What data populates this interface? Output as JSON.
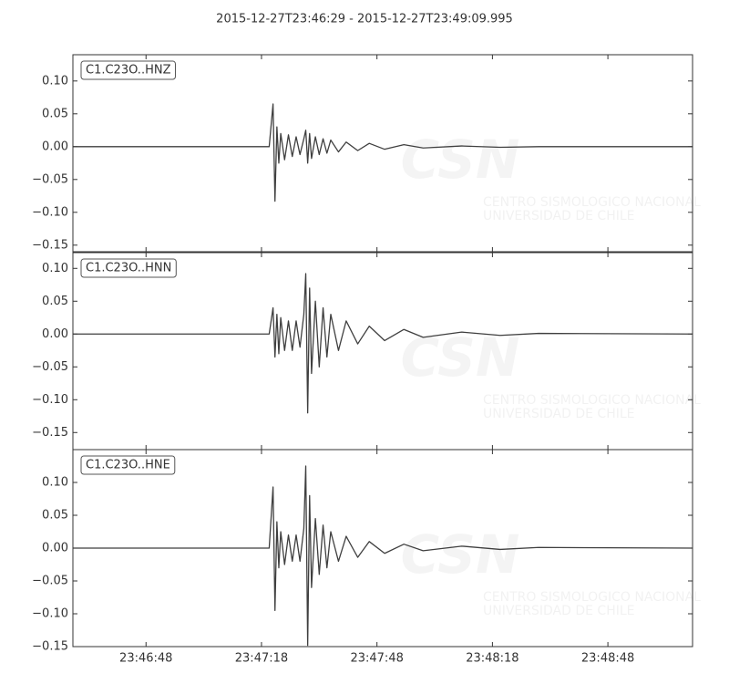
{
  "title": "2015-12-27T23:46:29  -  2015-12-27T23:49:09.995",
  "watermark": [
    "CSN",
    "CENTRO SISMOLOGICO NACIONAL",
    "UNIVERSIDAD DE CHILE"
  ],
  "chart_data": [
    {
      "type": "line",
      "label": "C1.C23O..HNZ",
      "color": "#3f3f3f",
      "xlim": [
        "23:46:29",
        "23:49:09.995"
      ],
      "ylim": [
        -0.16,
        0.14
      ],
      "yticks": [
        {
          "value": 0.1,
          "label": "0.10"
        },
        {
          "value": 0.05,
          "label": "0.05"
        },
        {
          "value": 0,
          "label": "0.00"
        },
        {
          "value": -0.05,
          "label": "−0.05"
        },
        {
          "value": -0.1,
          "label": "−0.10"
        },
        {
          "value": -0.15,
          "label": "−0.15"
        }
      ],
      "x": [
        "23:46:29",
        "23:47:20",
        "23:47:21",
        "23:47:21.5",
        "23:47:22",
        "23:47:22.5",
        "23:47:23",
        "23:47:24",
        "23:47:25",
        "23:47:26",
        "23:47:27",
        "23:47:28",
        "23:47:29",
        "23:47:29.5",
        "23:47:30",
        "23:47:30.5",
        "23:47:31",
        "23:47:32",
        "23:47:33",
        "23:47:34",
        "23:47:35",
        "23:47:36",
        "23:47:38",
        "23:47:40",
        "23:47:43",
        "23:47:46",
        "23:47:50",
        "23:47:55",
        "23:48:00",
        "23:48:10",
        "23:48:20",
        "23:48:30",
        "23:49:09.995"
      ],
      "values": [
        0,
        0,
        0.065,
        -0.083,
        0.03,
        -0.025,
        0.02,
        -0.02,
        0.018,
        -0.015,
        0.015,
        -0.012,
        0.012,
        0.025,
        -0.025,
        0.02,
        -0.018,
        0.015,
        -0.012,
        0.012,
        -0.01,
        0.01,
        -0.008,
        0.007,
        -0.006,
        0.005,
        -0.004,
        0.003,
        -0.002,
        0.001,
        -0.001,
        0,
        0
      ]
    },
    {
      "type": "line",
      "label": "C1.C23O..HNN",
      "color": "#3f3f3f",
      "xlim": [
        "23:46:29",
        "23:49:09.995"
      ],
      "ylim": [
        -0.176,
        0.124
      ],
      "yticks": [
        {
          "value": 0.1,
          "label": "0.10"
        },
        {
          "value": 0.05,
          "label": "0.05"
        },
        {
          "value": 0,
          "label": "0.00"
        },
        {
          "value": -0.05,
          "label": "−0.05"
        },
        {
          "value": -0.1,
          "label": "−0.10"
        },
        {
          "value": -0.15,
          "label": "−0.15"
        }
      ],
      "x": [
        "23:46:29",
        "23:47:20",
        "23:47:21",
        "23:47:21.5",
        "23:47:22",
        "23:47:22.5",
        "23:47:23",
        "23:47:24",
        "23:47:25",
        "23:47:26",
        "23:47:27",
        "23:47:28",
        "23:47:29",
        "23:47:29.5",
        "23:47:30",
        "23:47:30.5",
        "23:47:31",
        "23:47:32",
        "23:47:33",
        "23:47:34",
        "23:47:35",
        "23:47:36",
        "23:47:38",
        "23:47:40",
        "23:47:43",
        "23:47:46",
        "23:47:50",
        "23:47:55",
        "23:48:00",
        "23:48:10",
        "23:48:20",
        "23:48:30",
        "23:49:09.995"
      ],
      "values": [
        0,
        0,
        0.04,
        -0.035,
        0.03,
        -0.03,
        0.025,
        -0.025,
        0.02,
        -0.025,
        0.02,
        -0.02,
        0.03,
        0.092,
        -0.12,
        0.07,
        -0.06,
        0.05,
        -0.05,
        0.04,
        -0.035,
        0.03,
        -0.025,
        0.02,
        -0.015,
        0.012,
        -0.01,
        0.007,
        -0.005,
        0.003,
        -0.002,
        0.001,
        0
      ]
    },
    {
      "type": "line",
      "label": "C1.C23O..HNE",
      "color": "#3f3f3f",
      "xlim": [
        "23:46:29",
        "23:49:09.995"
      ],
      "ylim": [
        -0.15,
        0.15
      ],
      "xticks": [
        {
          "value": "23:46:48",
          "label": "23:46:48"
        },
        {
          "value": "23:47:18",
          "label": "23:47:18"
        },
        {
          "value": "23:47:48",
          "label": "23:47:48"
        },
        {
          "value": "23:48:18",
          "label": "23:48:18"
        },
        {
          "value": "23:48:48",
          "label": "23:48:48"
        }
      ],
      "yticks": [
        {
          "value": 0.1,
          "label": "0.10"
        },
        {
          "value": 0.05,
          "label": "0.05"
        },
        {
          "value": 0,
          "label": "0.00"
        },
        {
          "value": -0.05,
          "label": "−0.05"
        },
        {
          "value": -0.1,
          "label": "−0.10"
        },
        {
          "value": -0.15,
          "label": "−0.15"
        }
      ],
      "x": [
        "23:46:29",
        "23:47:20",
        "23:47:21",
        "23:47:21.5",
        "23:47:22",
        "23:47:22.5",
        "23:47:23",
        "23:47:24",
        "23:47:25",
        "23:47:26",
        "23:47:27",
        "23:47:28",
        "23:47:29",
        "23:47:29.5",
        "23:47:30",
        "23:47:30.5",
        "23:47:31",
        "23:47:32",
        "23:47:33",
        "23:47:34",
        "23:47:35",
        "23:47:36",
        "23:47:38",
        "23:47:40",
        "23:47:43",
        "23:47:46",
        "23:47:50",
        "23:47:55",
        "23:48:00",
        "23:48:10",
        "23:48:20",
        "23:48:30",
        "23:49:09.995"
      ],
      "values": [
        0,
        0,
        0.093,
        -0.095,
        0.04,
        -0.03,
        0.025,
        -0.025,
        0.02,
        -0.02,
        0.02,
        -0.02,
        0.03,
        0.125,
        -0.148,
        0.08,
        -0.06,
        0.045,
        -0.04,
        0.035,
        -0.03,
        0.025,
        -0.02,
        0.018,
        -0.014,
        0.01,
        -0.008,
        0.006,
        -0.004,
        0.003,
        -0.002,
        0.001,
        0
      ]
    }
  ]
}
